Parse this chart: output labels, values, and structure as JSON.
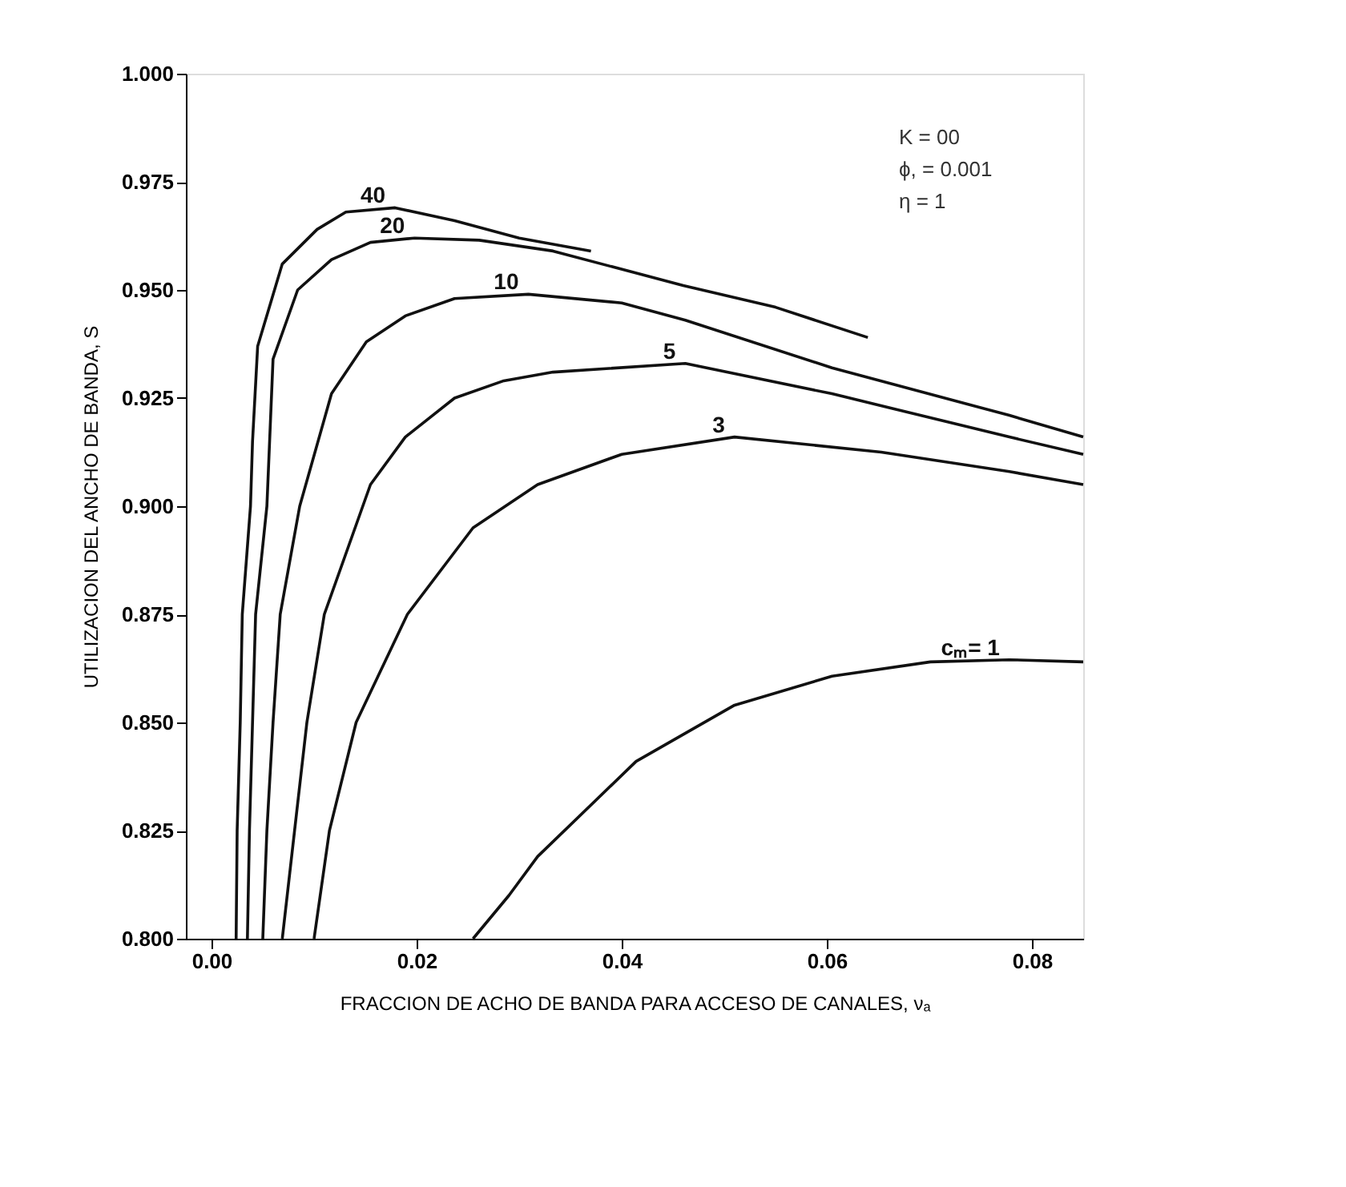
{
  "chart_data": {
    "type": "line",
    "xlabel": "FRACCION DE ACHO DE BANDA PARA ACCESO DE CANALES, νₐ",
    "ylabel": "UTILIZACION DEL ANCHO DE BANDA, S",
    "xlim": [
      -0.0025,
      0.085
    ],
    "ylim": [
      0.8,
      1.0
    ],
    "xticks": [
      {
        "value": 0,
        "label": "0.00"
      },
      {
        "value": 0.02,
        "label": "0.02"
      },
      {
        "value": 0.04,
        "label": "0.04"
      },
      {
        "value": 0.06,
        "label": "0.06"
      },
      {
        "value": 0.08,
        "label": "0.08"
      }
    ],
    "yticks": [
      {
        "value": 0.8,
        "label": "0.800"
      },
      {
        "value": 0.825,
        "label": "0.825"
      },
      {
        "value": 0.85,
        "label": "0.850"
      },
      {
        "value": 0.875,
        "label": "0.875"
      },
      {
        "value": 0.9,
        "label": "0.900"
      },
      {
        "value": 0.925,
        "label": "0.925"
      },
      {
        "value": 0.95,
        "label": "0.950"
      },
      {
        "value": 0.975,
        "label": "0.975"
      },
      {
        "value": 1.0,
        "label": "1.000"
      }
    ],
    "grid": false,
    "marker": "none",
    "line_style": "solid",
    "series": [
      {
        "name": "40",
        "color": "#111111",
        "x": [
          0.0024,
          0.0025,
          0.0028,
          0.003,
          0.0038,
          0.004,
          0.0045,
          0.0069,
          0.0103,
          0.0131,
          0.0179,
          0.0237,
          0.03,
          0.037
        ],
        "values": [
          0.8,
          0.825,
          0.85,
          0.875,
          0.9,
          0.915,
          0.937,
          0.956,
          0.964,
          0.968,
          0.969,
          0.966,
          0.962,
          0.959
        ]
      },
      {
        "name": "20",
        "color": "#111111",
        "x": [
          0.0035,
          0.0037,
          0.004,
          0.0043,
          0.0054,
          0.006,
          0.0084,
          0.0117,
          0.0155,
          0.0198,
          0.0261,
          0.0333,
          0.046,
          0.055,
          0.064
        ],
        "values": [
          0.8,
          0.825,
          0.85,
          0.875,
          0.9,
          0.934,
          0.95,
          0.957,
          0.961,
          0.962,
          0.9615,
          0.959,
          0.951,
          0.946,
          0.939
        ]
      },
      {
        "name": "10",
        "color": "#111111",
        "x": [
          0.005,
          0.0054,
          0.006,
          0.0067,
          0.0086,
          0.0117,
          0.0151,
          0.0189,
          0.0237,
          0.0309,
          0.04,
          0.0462,
          0.0605,
          0.0778,
          0.085
        ],
        "values": [
          0.8,
          0.825,
          0.85,
          0.875,
          0.9,
          0.926,
          0.938,
          0.944,
          0.948,
          0.949,
          0.947,
          0.943,
          0.932,
          0.921,
          0.916
        ]
      },
      {
        "name": "5",
        "color": "#111111",
        "x": [
          0.0069,
          0.0081,
          0.0093,
          0.011,
          0.0155,
          0.0189,
          0.0237,
          0.0285,
          0.0333,
          0.0462,
          0.0605,
          0.0778,
          0.085
        ],
        "values": [
          0.8,
          0.825,
          0.85,
          0.875,
          0.905,
          0.916,
          0.925,
          0.929,
          0.931,
          0.933,
          0.926,
          0.916,
          0.912
        ]
      },
      {
        "name": "3",
        "color": "#111111",
        "x": [
          0.01,
          0.0115,
          0.0141,
          0.0191,
          0.0255,
          0.0318,
          0.04,
          0.051,
          0.0653,
          0.0778,
          0.085
        ],
        "values": [
          0.8,
          0.825,
          0.85,
          0.875,
          0.895,
          0.905,
          0.912,
          0.916,
          0.9125,
          0.908,
          0.905
        ]
      },
      {
        "name": "cₘ= 1",
        "color": "#111111",
        "x": [
          0.0255,
          0.029,
          0.0318,
          0.0414,
          0.051,
          0.0605,
          0.0701,
          0.0778,
          0.085
        ],
        "values": [
          0.8,
          0.81,
          0.819,
          0.841,
          0.854,
          0.8607,
          0.864,
          0.8645,
          0.864
        ]
      }
    ],
    "annotations": [
      "K = 00",
      "ϕ, = 0.001",
      "η = 1"
    ]
  }
}
